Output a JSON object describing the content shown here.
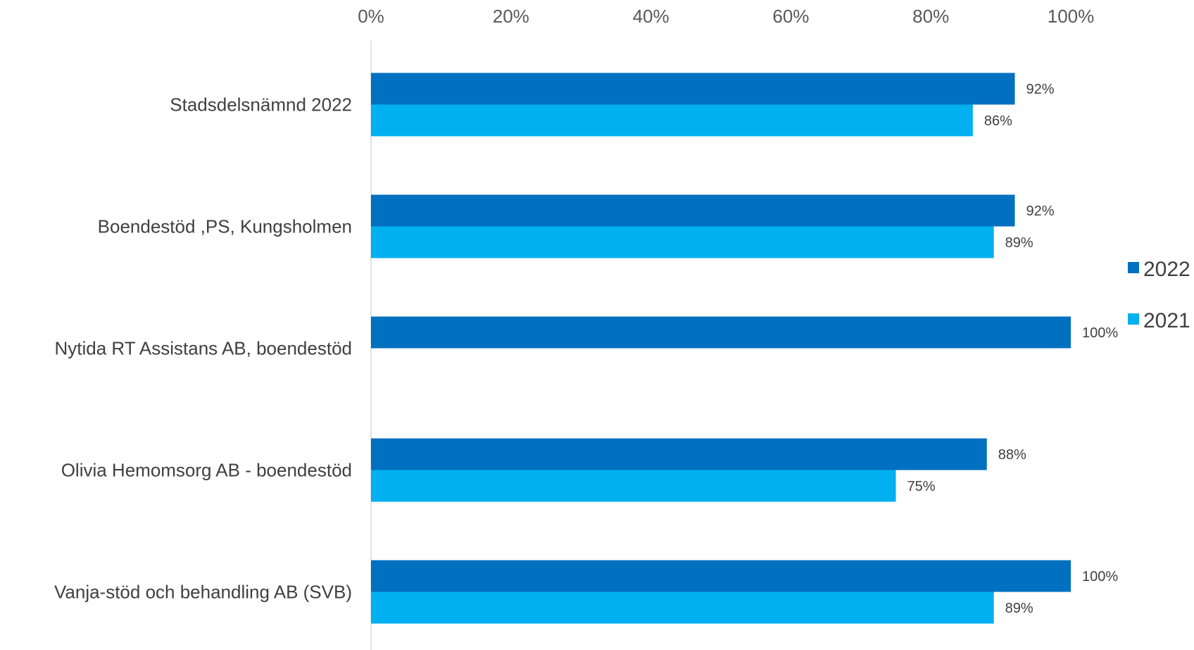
{
  "chart_data": {
    "type": "bar",
    "orientation": "horizontal",
    "categories": [
      "Stadsdelsnämnd 2022",
      "Boendestöd ,PS, Kungsholmen",
      "Nytida RT Assistans AB, boendestöd",
      "Olivia Hemomsorg AB - boendestöd",
      "Vanja-stöd och behandling AB (SVB)"
    ],
    "series": [
      {
        "name": "2022",
        "color": "#0070C0",
        "values": [
          92,
          92,
          100,
          88,
          100
        ],
        "labels": [
          "92%",
          "92%",
          "100%",
          "88%",
          "100%"
        ]
      },
      {
        "name": "2021",
        "color": "#00B0F0",
        "values": [
          86,
          89,
          null,
          75,
          89
        ],
        "labels": [
          "86%",
          "89%",
          "",
          "75%",
          "89%"
        ]
      }
    ],
    "xlim": [
      0,
      100
    ],
    "xticks": [
      0,
      20,
      40,
      60,
      80,
      100
    ],
    "xtick_labels": [
      "0%",
      "20%",
      "40%",
      "60%",
      "80%",
      "100%"
    ],
    "axis_position": "top",
    "grid": false,
    "legend_position": "right"
  }
}
